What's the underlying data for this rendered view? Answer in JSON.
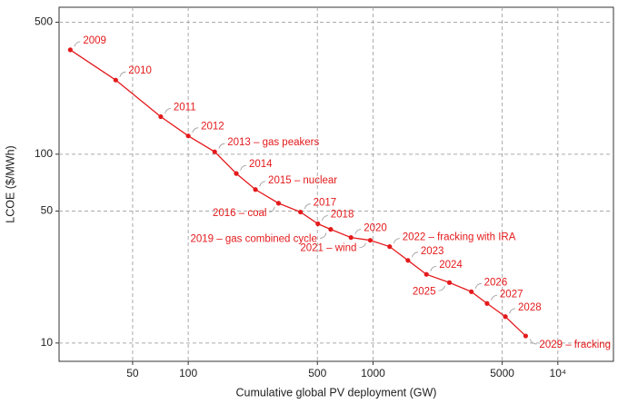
{
  "chart_data": {
    "type": "line",
    "x_label": "Cumulative global PV deployment (GW)",
    "y_label": "LCOE ($/MWh)",
    "log_x": true,
    "log_y": true,
    "grid": true,
    "xlim": [
      20,
      20000
    ],
    "ylim": [
      8,
      600
    ],
    "xticks": [
      50,
      100,
      500,
      1000,
      5000,
      {
        "value": 10000,
        "label": "10⁴"
      }
    ],
    "yticks": [
      10,
      50,
      100,
      500
    ],
    "series": [
      {
        "color": "#e41a1c",
        "x": [
          23,
          40.5,
          71,
          100,
          139,
          182,
          231,
          308,
          405,
          503,
          590,
          760,
          966,
          1230,
          1545,
          1945,
          2590,
          3405,
          4140,
          5200,
          6700
        ],
        "values": [
          357,
          247,
          158,
          125,
          103,
          79,
          65,
          55,
          49.4,
          42.8,
          40,
          36.2,
          35,
          32.4,
          27.4,
          23.1,
          20.9,
          18.7,
          16.2,
          13.8,
          10.9
        ],
        "labels": [
          "2009",
          "2010",
          "2011",
          "2012",
          "2013 – gas peakers",
          "2014",
          "2015 – nuclear",
          "2016 – coal",
          "2017",
          "2018",
          "2019 – gas combined cycle",
          "2020",
          "2021 – wind",
          "2022 – fracking with IRA",
          "2023",
          "2024",
          "2025",
          "2026",
          "2027",
          "2028",
          "2029 – fracking"
        ]
      }
    ]
  }
}
